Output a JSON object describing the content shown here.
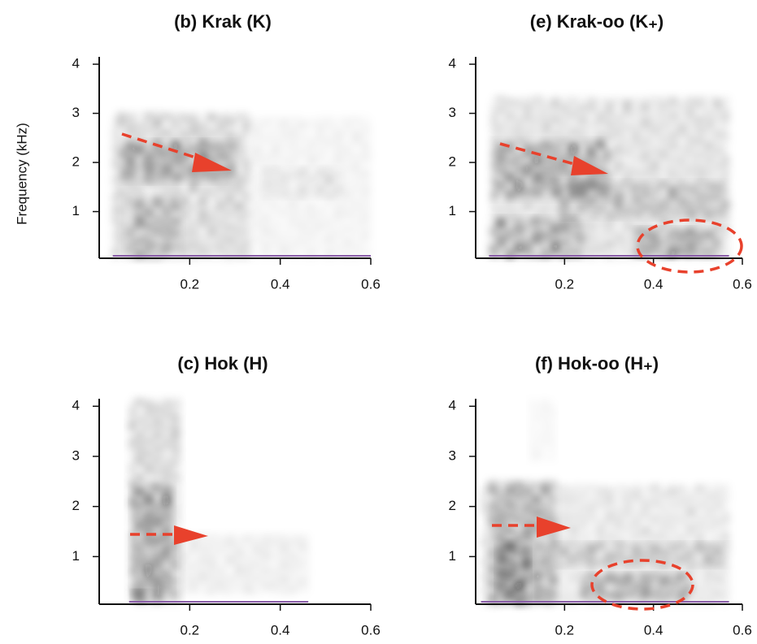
{
  "chart_data": [
    {
      "type": "spectrogram",
      "title": "(b) Krak (K)",
      "ylabel": "Frequency (kHz)",
      "xlim": [
        0,
        0.6
      ],
      "ylim": [
        0.05,
        4.15
      ],
      "xticks": [
        0.2,
        0.4,
        0.6
      ],
      "yticks": [
        1,
        2,
        3,
        4
      ]
    },
    {
      "type": "spectrogram",
      "title": "(e) Krak-oo (K₊)",
      "xlim": [
        0,
        0.6
      ],
      "ylim": [
        0.05,
        4.15
      ],
      "xticks": [
        0.2,
        0.4,
        0.6
      ],
      "yticks": [
        1,
        2,
        3,
        4
      ]
    },
    {
      "type": "spectrogram",
      "title": "(c) Hok (H)",
      "xlim": [
        0,
        0.6
      ],
      "ylim": [
        0.05,
        4.15
      ],
      "xticks": [
        0.2,
        0.4,
        0.6
      ],
      "yticks": [
        1,
        2,
        3,
        4
      ]
    },
    {
      "type": "spectrogram",
      "title": "(f) Hok-oo (H₊)",
      "xlim": [
        0,
        0.6
      ],
      "ylim": [
        0.05,
        4.15
      ],
      "xticks": [
        0.2,
        0.4,
        0.6
      ],
      "yticks": [
        1,
        2,
        3,
        4
      ]
    }
  ]
}
